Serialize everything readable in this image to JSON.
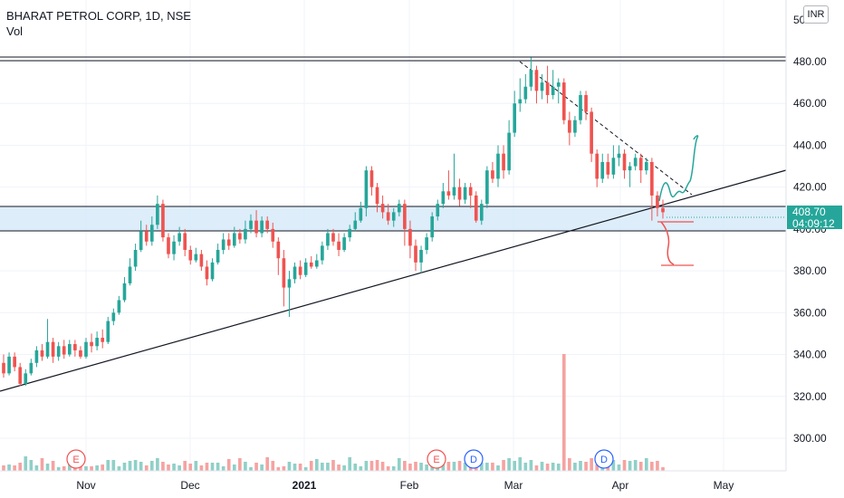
{
  "legend": {
    "title": "BHARAT PETROL CORP, 1D, NSE",
    "volume_label": "Vol"
  },
  "currency_label": "INR",
  "price_tag": {
    "price": "408.70",
    "countdown": "04:09:12"
  },
  "colors": {
    "up": "#26a69a",
    "down": "#ef5350",
    "vol_up": "#8fd0c8",
    "vol_down": "#f5a3a1",
    "zone": "#cfe6f8",
    "grid": "#f0f3fa",
    "axis_text": "#131722"
  },
  "chart_data": {
    "type": "candlestick",
    "y_ticks": [
      "480.00",
      "460.00",
      "440.00",
      "420.00",
      "400.00",
      "380.00",
      "360.00",
      "340.00",
      "320.00",
      "300.00"
    ],
    "x_ticks": [
      "Nov",
      "Dec",
      "2021",
      "Feb",
      "Mar",
      "Apr",
      "May"
    ],
    "markers": [
      "E",
      "E",
      "D",
      "D"
    ],
    "candles": [
      [
        336,
        331,
        340,
        329
      ],
      [
        331,
        339,
        341,
        330
      ],
      [
        339,
        334,
        341,
        332
      ],
      [
        334,
        326,
        336,
        325
      ],
      [
        326,
        331,
        333,
        325
      ],
      [
        331,
        336,
        338,
        330
      ],
      [
        336,
        342,
        344,
        334
      ],
      [
        342,
        339,
        345,
        337
      ],
      [
        339,
        346,
        357,
        338
      ],
      [
        346,
        339,
        348,
        336
      ],
      [
        339,
        344,
        346,
        337
      ],
      [
        344,
        340,
        347,
        338
      ],
      [
        340,
        345,
        347,
        339
      ],
      [
        345,
        342,
        347,
        339
      ],
      [
        342,
        339,
        344,
        338
      ],
      [
        339,
        346,
        348,
        338
      ],
      [
        346,
        344,
        350,
        341
      ],
      [
        344,
        348,
        351,
        342
      ],
      [
        348,
        346,
        352,
        343
      ],
      [
        346,
        356,
        358,
        345
      ],
      [
        356,
        360,
        362,
        354
      ],
      [
        360,
        366,
        368,
        359
      ],
      [
        366,
        374,
        377,
        365
      ],
      [
        374,
        382,
        386,
        373
      ],
      [
        382,
        390,
        393,
        380
      ],
      [
        390,
        399,
        404,
        389
      ],
      [
        399,
        394,
        402,
        392
      ],
      [
        394,
        402,
        406,
        392
      ],
      [
        402,
        412,
        416,
        400
      ],
      [
        412,
        396,
        414,
        394
      ],
      [
        396,
        388,
        398,
        386
      ],
      [
        388,
        394,
        397,
        385
      ],
      [
        394,
        398,
        401,
        392
      ],
      [
        398,
        390,
        400,
        387
      ],
      [
        390,
        385,
        392,
        383
      ],
      [
        385,
        388,
        391,
        384
      ],
      [
        388,
        382,
        390,
        380
      ],
      [
        382,
        376,
        385,
        373
      ],
      [
        376,
        384,
        386,
        375
      ],
      [
        384,
        390,
        393,
        383
      ],
      [
        390,
        395,
        398,
        388
      ],
      [
        395,
        392,
        398,
        390
      ],
      [
        392,
        398,
        401,
        391
      ],
      [
        398,
        395,
        400,
        393
      ],
      [
        395,
        400,
        404,
        393
      ],
      [
        400,
        404,
        407,
        398
      ],
      [
        404,
        398,
        409,
        396
      ],
      [
        398,
        404,
        406,
        396
      ],
      [
        404,
        400,
        406,
        398
      ],
      [
        400,
        394,
        403,
        391
      ],
      [
        394,
        386,
        396,
        378
      ],
      [
        386,
        372,
        390,
        363
      ],
      [
        372,
        376,
        380,
        358
      ],
      [
        376,
        382,
        384,
        374
      ],
      [
        382,
        378,
        385,
        376
      ],
      [
        378,
        384,
        386,
        377
      ],
      [
        384,
        382,
        387,
        381
      ],
      [
        382,
        385,
        388,
        381
      ],
      [
        385,
        392,
        394,
        383
      ],
      [
        392,
        398,
        400,
        390
      ],
      [
        398,
        394,
        400,
        392
      ],
      [
        394,
        390,
        398,
        387
      ],
      [
        390,
        396,
        398,
        389
      ],
      [
        396,
        400,
        402,
        394
      ],
      [
        400,
        404,
        408,
        399
      ],
      [
        404,
        410,
        413,
        403
      ],
      [
        410,
        428,
        430,
        406
      ],
      [
        428,
        420,
        430,
        416
      ],
      [
        420,
        412,
        422,
        408
      ],
      [
        412,
        408,
        416,
        405
      ],
      [
        408,
        404,
        412,
        402
      ],
      [
        404,
        408,
        410,
        401
      ],
      [
        408,
        412,
        414,
        406
      ],
      [
        412,
        400,
        414,
        392
      ],
      [
        400,
        392,
        404,
        386
      ],
      [
        392,
        384,
        395,
        380
      ],
      [
        384,
        390,
        392,
        379
      ],
      [
        390,
        396,
        398,
        388
      ],
      [
        396,
        406,
        408,
        394
      ],
      [
        406,
        412,
        414,
        404
      ],
      [
        412,
        418,
        422,
        410
      ],
      [
        418,
        416,
        428,
        414
      ],
      [
        416,
        420,
        436,
        414
      ],
      [
        420,
        414,
        424,
        411
      ],
      [
        414,
        420,
        422,
        412
      ],
      [
        420,
        416,
        422,
        410
      ],
      [
        416,
        404,
        418,
        403
      ],
      [
        404,
        412,
        414,
        402
      ],
      [
        412,
        428,
        430,
        410
      ],
      [
        428,
        424,
        432,
        422
      ],
      [
        424,
        436,
        440,
        420
      ],
      [
        436,
        428,
        440,
        424
      ],
      [
        428,
        446,
        452,
        426
      ],
      [
        446,
        460,
        466,
        444
      ],
      [
        460,
        462,
        472,
        456
      ],
      [
        462,
        468,
        474,
        460
      ],
      [
        468,
        476,
        482,
        466
      ],
      [
        476,
        466,
        478,
        460
      ],
      [
        466,
        470,
        474,
        462
      ],
      [
        470,
        464,
        478,
        460
      ],
      [
        464,
        468,
        476,
        462
      ],
      [
        468,
        470,
        472,
        460
      ],
      [
        470,
        452,
        472,
        450
      ],
      [
        452,
        446,
        456,
        440
      ],
      [
        446,
        452,
        454,
        444
      ],
      [
        452,
        464,
        466,
        450
      ],
      [
        464,
        456,
        466,
        452
      ],
      [
        456,
        436,
        458,
        432
      ],
      [
        436,
        424,
        438,
        420
      ],
      [
        424,
        432,
        436,
        422
      ],
      [
        432,
        426,
        436,
        424
      ],
      [
        426,
        434,
        440,
        424
      ],
      [
        434,
        436,
        440,
        430
      ],
      [
        436,
        428,
        438,
        424
      ],
      [
        428,
        430,
        432,
        420
      ],
      [
        430,
        434,
        436,
        428
      ],
      [
        434,
        428,
        436,
        422
      ],
      [
        428,
        432,
        434,
        426
      ],
      [
        432,
        416,
        434,
        404
      ],
      [
        416,
        410,
        418,
        406
      ],
      [
        410,
        408,
        414,
        405
      ]
    ]
  }
}
